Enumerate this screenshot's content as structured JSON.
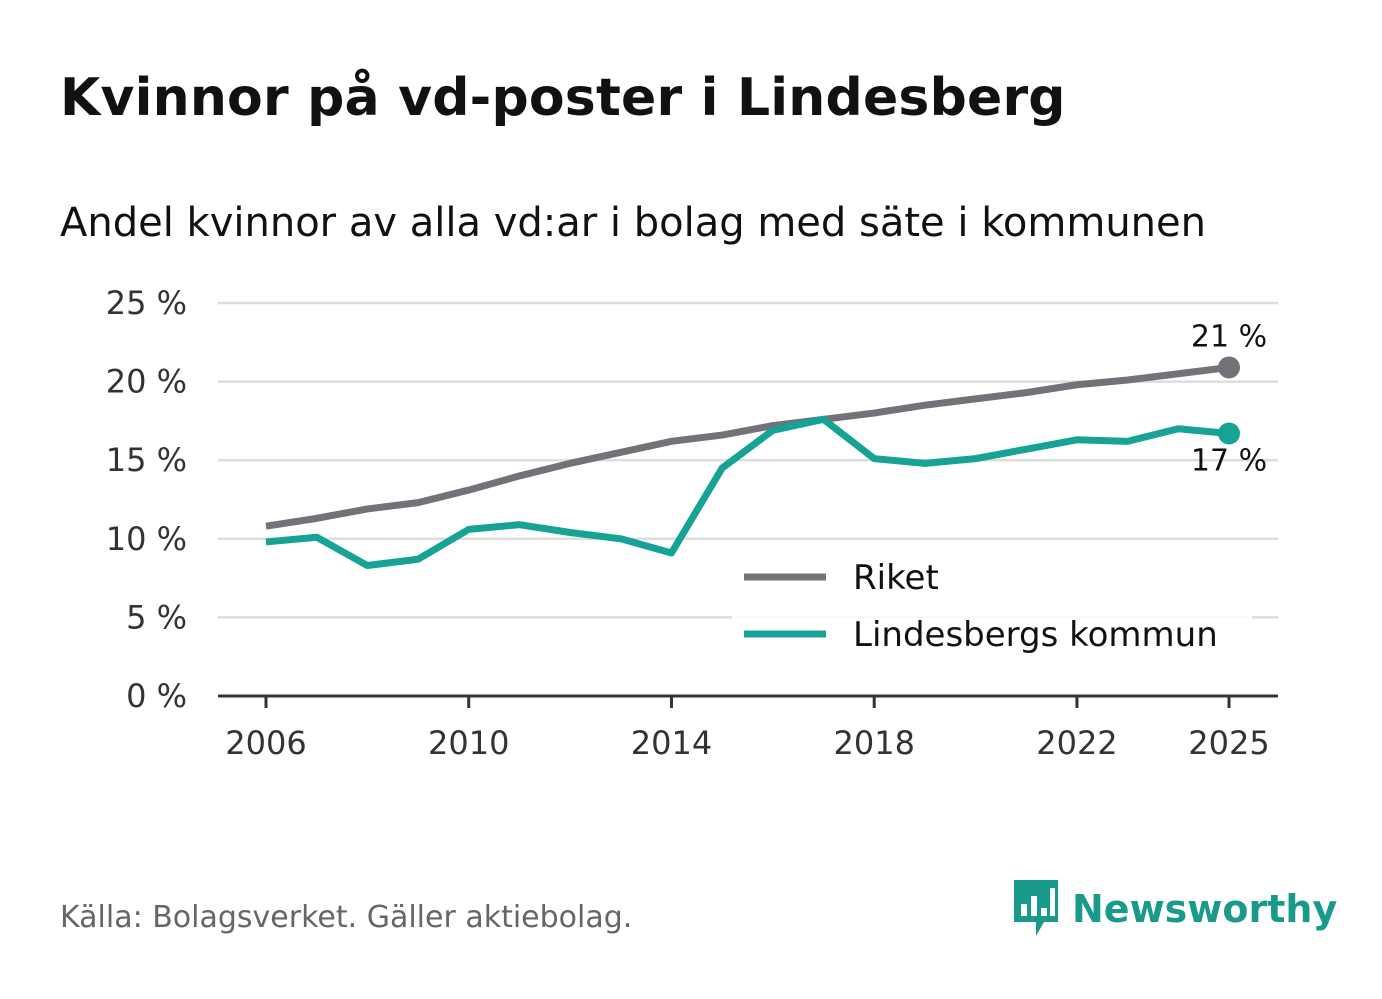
{
  "title": "Kvinnor på vd-poster i Lindesberg",
  "subtitle": "Andel kvinnor av alla vd:ar i bolag med säte i kommunen",
  "source": "Källa: Bolagsverket. Gäller aktiebolag.",
  "brand": {
    "name": "Newsworthy",
    "color": "#1a9a8b"
  },
  "chart_data": {
    "type": "line",
    "x": [
      2006,
      2007,
      2008,
      2009,
      2010,
      2011,
      2012,
      2013,
      2014,
      2015,
      2016,
      2017,
      2018,
      2019,
      2020,
      2021,
      2022,
      2023,
      2024,
      2025
    ],
    "series": [
      {
        "name": "Riket",
        "color": "#737278",
        "values": [
          10.8,
          11.3,
          11.9,
          12.3,
          13.1,
          14.0,
          14.8,
          15.5,
          16.2,
          16.6,
          17.2,
          17.6,
          18.0,
          18.5,
          18.9,
          19.3,
          19.8,
          20.1,
          20.5,
          20.9
        ],
        "end_label": "21 %"
      },
      {
        "name": "Lindesbergs kommun",
        "color": "#16a396",
        "values": [
          9.8,
          10.1,
          8.3,
          8.7,
          10.6,
          10.9,
          10.4,
          10.0,
          9.1,
          14.5,
          16.9,
          17.6,
          15.1,
          14.8,
          15.1,
          15.7,
          16.3,
          16.2,
          17.0,
          16.7
        ],
        "end_label": "17 %"
      }
    ],
    "ylim": [
      0,
      25
    ],
    "yticks": [
      0,
      5,
      10,
      15,
      20,
      25
    ],
    "ytick_labels": [
      "0 %",
      "5 %",
      "10 %",
      "15 %",
      "20 %",
      "25 %"
    ],
    "xticks": [
      2006,
      2010,
      2014,
      2018,
      2022,
      2025
    ],
    "xtick_labels": [
      "2006",
      "2010",
      "2014",
      "2018",
      "2022",
      "2025"
    ],
    "legend": {
      "position": "bottom-right",
      "entries": [
        "Riket",
        "Lindesbergs kommun"
      ]
    },
    "grid": true
  }
}
